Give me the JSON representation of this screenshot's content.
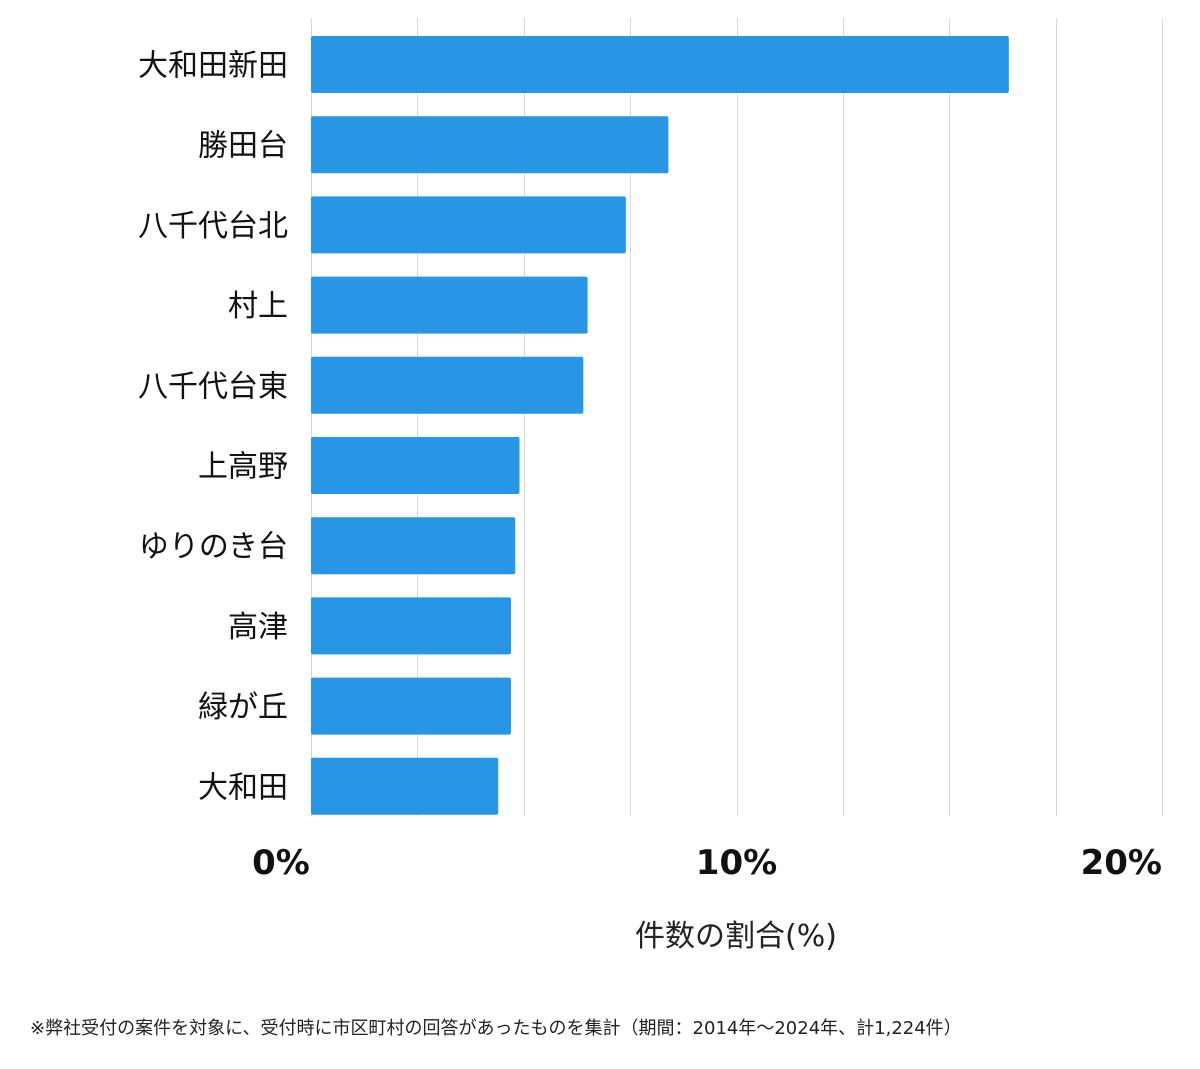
{
  "chart_data": {
    "type": "bar",
    "orientation": "horizontal",
    "categories": [
      "大和田新田",
      "勝田台",
      "八千代台北",
      "村上",
      "八千代台東",
      "上高野",
      "ゆりのき台",
      "高津",
      "緑が丘",
      "大和田"
    ],
    "values": [
      16.4,
      8.4,
      7.4,
      6.5,
      6.4,
      4.9,
      4.8,
      4.7,
      4.7,
      4.4
    ],
    "xlabel": "件数の割合(%)",
    "xlim": [
      0,
      20
    ],
    "xticks": [
      0,
      10,
      20
    ],
    "xtick_labels": [
      "0%",
      "10%",
      "20%"
    ],
    "grid": true,
    "bar_color": "#2895E5",
    "grid_color": "#D8D8D8"
  },
  "footnote": "※弊社受付の案件を対象に、受付時に市区町村の回答があったものを集計（期間：2014年～2024年、計1,224件）"
}
